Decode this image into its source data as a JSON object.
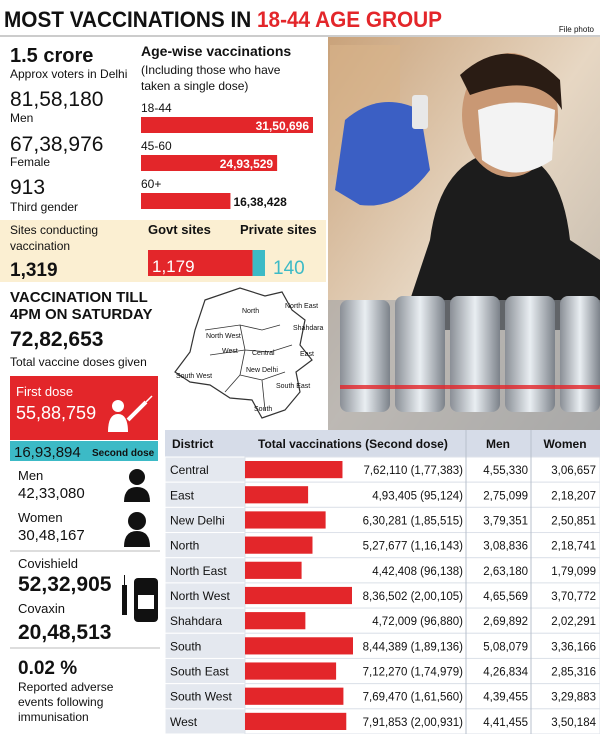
{
  "header": {
    "title_black": "MOST VACCINATIONS IN ",
    "title_red": "18-44 AGE GROUP",
    "credit": "File photo"
  },
  "voters": {
    "total": "1.5 crore",
    "total_label": "Approx voters in Delhi",
    "men": "81,58,180",
    "men_label": "Men",
    "female": "67,38,976",
    "female_label": "Female",
    "third_gender": "913",
    "third_gender_label": "Third gender"
  },
  "age_wise": {
    "title": "Age-wise vaccinations",
    "subtitle_lines": [
      "(Including those who have",
      "taken a single dose)"
    ],
    "groups": [
      {
        "label": "18-44",
        "value": 3150696,
        "value_label": "31,50,696"
      },
      {
        "label": "45-60",
        "value": 2493529,
        "value_label": "24,93,529"
      },
      {
        "label": "60+",
        "value": 1638428,
        "value_label": "16,38,428"
      }
    ]
  },
  "sites": {
    "label_lines": [
      "Sites conducting",
      "vaccination"
    ],
    "total": "1,319",
    "govt_label": "Govt sites",
    "govt": {
      "value": 1179,
      "label": "1,179"
    },
    "private_label": "Private sites",
    "private": 140
  },
  "vaccination": {
    "title_lines": [
      "VACCINATION TILL",
      "4PM ON SATURDAY"
    ],
    "total": "72,82,653",
    "total_label": "Total vaccine doses given",
    "first_dose_label": "First dose",
    "first_dose": "55,88,759",
    "second_dose": "16,93,894",
    "second_dose_label": "Second dose",
    "men_label": "Men",
    "men": "42,33,080",
    "women_label": "Women",
    "women": "30,48,167",
    "covishield_label": "Covishield",
    "covishield": "52,32,905",
    "covaxin_label": "Covaxin",
    "covaxin": "20,48,513",
    "adverse": "0.02 %",
    "adverse_label_lines": [
      "Reported adverse",
      "events following",
      "immunisation"
    ]
  },
  "map": {
    "labels": [
      "North",
      "North East",
      "Shahdara",
      "North West",
      "Central",
      "East",
      "West",
      "New Delhi",
      "South West",
      "South East",
      "South"
    ]
  },
  "table": {
    "headers": [
      "District",
      "Total vaccinations (Second dose)",
      "Men",
      "Women"
    ],
    "rows": [
      {
        "district": "Central",
        "total": 762110,
        "total_label": "7,62,110 (1,77,383)",
        "men": "4,55,330",
        "women": "3,06,657"
      },
      {
        "district": "East",
        "total": 493405,
        "total_label": "4,93,405 (95,124)",
        "men": "2,75,099",
        "women": "2,18,207"
      },
      {
        "district": "New Delhi",
        "total": 630281,
        "total_label": "6,30,281 (1,85,515)",
        "men": "3,79,351",
        "women": "2,50,851"
      },
      {
        "district": "North",
        "total": 527677,
        "total_label": "5,27,677 (1,16,143)",
        "men": "3,08,836",
        "women": "2,18,741"
      },
      {
        "district": "North East",
        "total": 442408,
        "total_label": "4,42,408 (96,138)",
        "men": "2,63,180",
        "women": "1,79,099"
      },
      {
        "district": "North West",
        "total": 836502,
        "total_label": "8,36,502 (2,00,105)",
        "men": "4,65,569",
        "women": "3,70,772"
      },
      {
        "district": "Shahdara",
        "total": 472009,
        "total_label": "4,72,009 (96,880)",
        "men": "2,69,892",
        "women": "2,02,291"
      },
      {
        "district": "South",
        "total": 844389,
        "total_label": "8,44,389 (1,89,136)",
        "men": "5,08,079",
        "women": "3,36,166"
      },
      {
        "district": "South East",
        "total": 712270,
        "total_label": "7,12,270 (1,74,979)",
        "men": "4,26,834",
        "women": "2,85,316"
      },
      {
        "district": "South West",
        "total": 769470,
        "total_label": "7,69,470 (1,61,560)",
        "men": "4,39,455",
        "women": "3,29,883"
      },
      {
        "district": "West",
        "total": 791853,
        "total_label": "7,91,853 (2,00,931)",
        "men": "4,41,455",
        "women": "3,50,184"
      }
    ]
  }
}
